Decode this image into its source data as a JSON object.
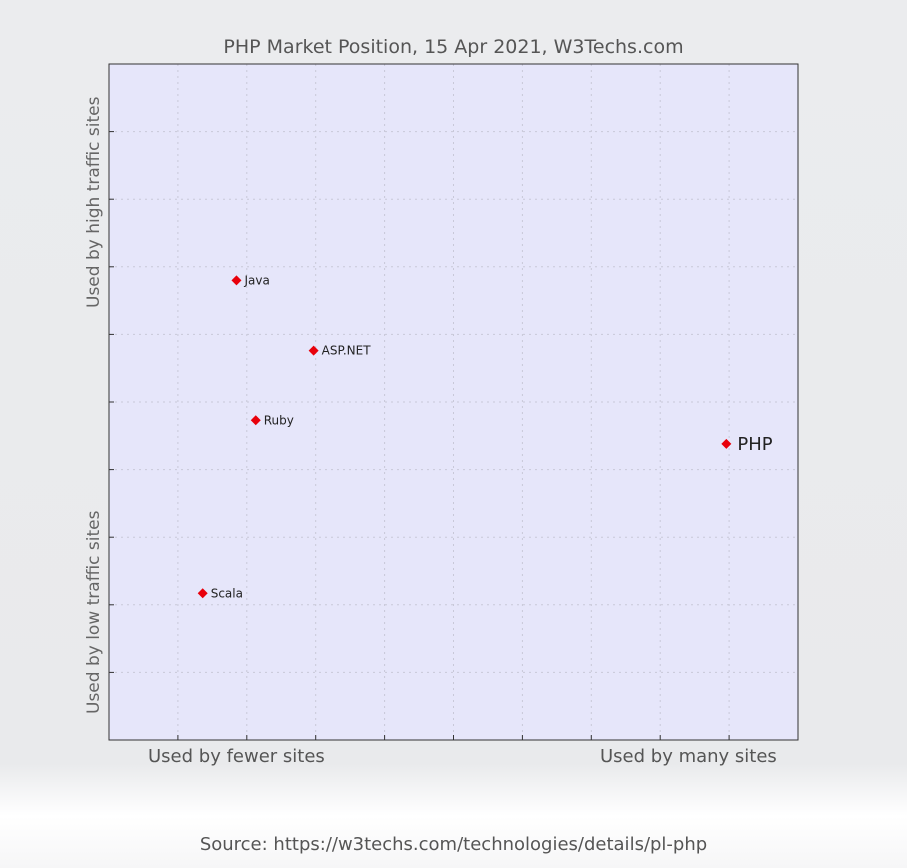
{
  "chart_data": {
    "type": "scatter",
    "title": "PHP Market Position, 15 Apr 2021, W3Techs.com",
    "x_axis_labels": {
      "low": "Used by fewer sites",
      "high": "Used by many sites"
    },
    "y_axis_labels": {
      "low": "Used by low traffic sites",
      "high": "Used by high traffic sites"
    },
    "xlim": [
      0,
      10
    ],
    "ylim": [
      0,
      10
    ],
    "grid": true,
    "points": [
      {
        "label": "Java",
        "x": 1.85,
        "y": 6.8
      },
      {
        "label": "ASP.NET",
        "x": 2.97,
        "y": 5.76
      },
      {
        "label": "Ruby",
        "x": 2.13,
        "y": 4.73
      },
      {
        "label": "PHP",
        "x": 8.96,
        "y": 4.38,
        "highlight": true
      },
      {
        "label": "Scala",
        "x": 1.36,
        "y": 2.17
      }
    ],
    "colors": {
      "plot_background": "#e6e6fa",
      "marker": "#e8000b",
      "grid": "#c8c8d8"
    }
  },
  "footer": {
    "source": "Source: https://w3techs.com/technologies/details/pl-php"
  }
}
